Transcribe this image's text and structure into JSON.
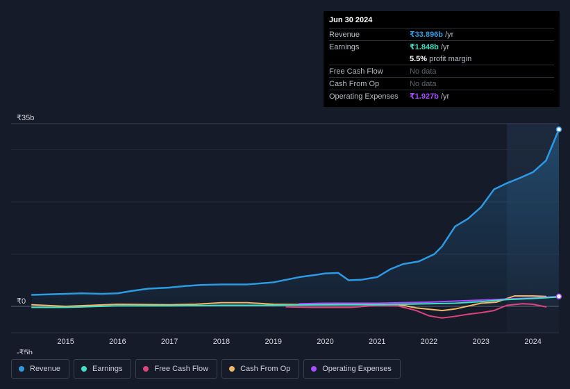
{
  "tooltip": {
    "date": "Jun 30 2024",
    "rows": [
      {
        "label": "Revenue",
        "value": "₹33.896b",
        "suffix": " /yr"
      },
      {
        "label": "Earnings",
        "value": "₹1.848b",
        "suffix": " /yr"
      },
      {
        "label": "",
        "value": "5.5%",
        "suffix": " profit margin"
      },
      {
        "label": "Free Cash Flow",
        "value": "No data",
        "suffix": ""
      },
      {
        "label": "Cash From Op",
        "value": "No data",
        "suffix": ""
      },
      {
        "label": "Operating Expenses",
        "value": "₹1.927b",
        "suffix": " /yr"
      }
    ]
  },
  "legend": [
    {
      "label": "Revenue",
      "color": "#2d9ae4"
    },
    {
      "label": "Earnings",
      "color": "#3fe0c5"
    },
    {
      "label": "Free Cash Flow",
      "color": "#e0427e"
    },
    {
      "label": "Cash From Op",
      "color": "#f0b865"
    },
    {
      "label": "Operating Expenses",
      "color": "#a64dff"
    }
  ],
  "chart_data": {
    "type": "line",
    "title": "",
    "xlabel": "",
    "ylabel": "",
    "ylim": [
      -5,
      35
    ],
    "y_tick_labels": [
      "₹35b",
      "₹0",
      "-₹5b"
    ],
    "y_tick_values": [
      35,
      0,
      -5
    ],
    "x_tick_labels": [
      "2015",
      "2016",
      "2017",
      "2018",
      "2019",
      "2020",
      "2021",
      "2022",
      "2023",
      "2024"
    ],
    "x_tick_values": [
      2015,
      2016,
      2017,
      2018,
      2019,
      2020,
      2021,
      2022,
      2023,
      2024
    ],
    "xlim": [
      2014.35,
      2024.5
    ],
    "highlight_start": 2023.5,
    "series": [
      {
        "name": "Revenue",
        "color": "#2d9ae4",
        "fill": true,
        "points": [
          [
            2014.35,
            2.2
          ],
          [
            2015.0,
            2.4
          ],
          [
            2015.3,
            2.5
          ],
          [
            2015.7,
            2.4
          ],
          [
            2016.0,
            2.5
          ],
          [
            2016.3,
            3.0
          ],
          [
            2016.6,
            3.4
          ],
          [
            2017.0,
            3.6
          ],
          [
            2017.3,
            3.9
          ],
          [
            2017.6,
            4.1
          ],
          [
            2018.0,
            4.2
          ],
          [
            2018.5,
            4.2
          ],
          [
            2019.0,
            4.6
          ],
          [
            2019.5,
            5.6
          ],
          [
            2019.8,
            6.0
          ],
          [
            2020.0,
            6.3
          ],
          [
            2020.25,
            6.4
          ],
          [
            2020.45,
            5.0
          ],
          [
            2020.7,
            5.1
          ],
          [
            2021.0,
            5.6
          ],
          [
            2021.25,
            7.1
          ],
          [
            2021.5,
            8.1
          ],
          [
            2021.8,
            8.6
          ],
          [
            2022.1,
            10.0
          ],
          [
            2022.25,
            11.5
          ],
          [
            2022.5,
            15.3
          ],
          [
            2022.75,
            16.8
          ],
          [
            2023.0,
            19.0
          ],
          [
            2023.25,
            22.4
          ],
          [
            2023.5,
            23.6
          ],
          [
            2023.75,
            24.6
          ],
          [
            2024.0,
            25.7
          ],
          [
            2024.25,
            27.9
          ],
          [
            2024.5,
            33.9
          ]
        ]
      },
      {
        "name": "Earnings",
        "color": "#3fe0c5",
        "fill": false,
        "points": [
          [
            2014.35,
            -0.2
          ],
          [
            2015.0,
            -0.2
          ],
          [
            2016.0,
            0.1
          ],
          [
            2017.0,
            0.1
          ],
          [
            2018.0,
            0.2
          ],
          [
            2019.0,
            0.2
          ],
          [
            2020.0,
            0.3
          ],
          [
            2021.0,
            0.3
          ],
          [
            2022.0,
            0.5
          ],
          [
            2022.5,
            0.6
          ],
          [
            2023.0,
            0.9
          ],
          [
            2023.5,
            1.3
          ],
          [
            2024.0,
            1.5
          ],
          [
            2024.5,
            1.8
          ]
        ]
      },
      {
        "name": "Free Cash Flow",
        "color": "#e0427e",
        "fill": false,
        "points": [
          [
            2019.25,
            -0.1
          ],
          [
            2019.75,
            -0.2
          ],
          [
            2020.5,
            -0.2
          ],
          [
            2021.0,
            0.2
          ],
          [
            2021.4,
            0.1
          ],
          [
            2021.75,
            -0.8
          ],
          [
            2022.0,
            -1.8
          ],
          [
            2022.25,
            -2.2
          ],
          [
            2022.5,
            -1.9
          ],
          [
            2022.75,
            -1.5
          ],
          [
            2023.0,
            -1.2
          ],
          [
            2023.25,
            -0.8
          ],
          [
            2023.5,
            0.2
          ],
          [
            2023.8,
            0.5
          ],
          [
            2024.0,
            0.4
          ],
          [
            2024.25,
            -0.1
          ]
        ]
      },
      {
        "name": "Cash From Op",
        "color": "#f0b865",
        "fill": false,
        "points": [
          [
            2014.35,
            0.3
          ],
          [
            2015.0,
            0.0
          ],
          [
            2016.0,
            0.4
          ],
          [
            2017.0,
            0.3
          ],
          [
            2017.5,
            0.4
          ],
          [
            2018.0,
            0.7
          ],
          [
            2018.5,
            0.7
          ],
          [
            2019.0,
            0.4
          ],
          [
            2020.0,
            0.3
          ],
          [
            2021.0,
            0.4
          ],
          [
            2021.5,
            0.2
          ],
          [
            2021.75,
            -0.3
          ],
          [
            2022.25,
            -0.8
          ],
          [
            2022.5,
            -0.5
          ],
          [
            2023.0,
            0.6
          ],
          [
            2023.3,
            0.8
          ],
          [
            2023.5,
            1.5
          ],
          [
            2023.65,
            2.0
          ],
          [
            2024.0,
            2.0
          ],
          [
            2024.25,
            1.9
          ]
        ]
      },
      {
        "name": "Operating Expenses",
        "color": "#a64dff",
        "fill": false,
        "points": [
          [
            2019.5,
            0.5
          ],
          [
            2020.0,
            0.6
          ],
          [
            2021.0,
            0.6
          ],
          [
            2021.5,
            0.7
          ],
          [
            2022.0,
            0.8
          ],
          [
            2022.5,
            1.0
          ],
          [
            2023.0,
            1.2
          ],
          [
            2023.5,
            1.4
          ],
          [
            2024.0,
            1.6
          ],
          [
            2024.5,
            1.9
          ]
        ]
      }
    ]
  }
}
